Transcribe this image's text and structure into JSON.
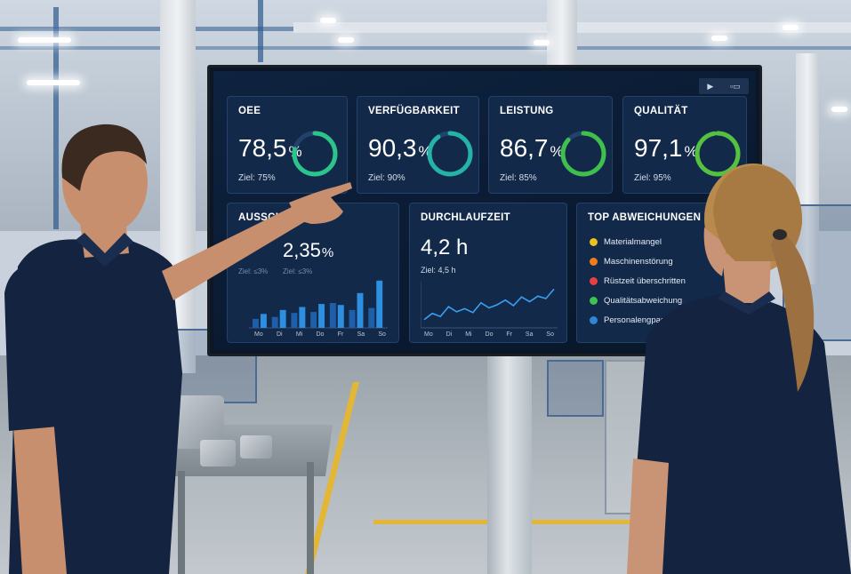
{
  "tv": {
    "toolbar": {
      "play_icon": "▶",
      "screen_icon": "▫▭"
    },
    "kpis": [
      {
        "title": "OEE",
        "value": "78,5",
        "unit": "%",
        "target": "Ziel: 75%",
        "fraction": 0.785,
        "color": "#2bc48a"
      },
      {
        "title": "VERFÜGBARKEIT",
        "value": "90,3",
        "unit": "%",
        "target": "Ziel: 90%",
        "fraction": 0.903,
        "color": "#24b3a6"
      },
      {
        "title": "LEISTUNG",
        "value": "86,7",
        "unit": "%",
        "target": "Ziel: 85%",
        "fraction": 0.867,
        "color": "#3fbf4b"
      },
      {
        "title": "QUALITÄT",
        "value": "97,1",
        "unit": "%",
        "target": "Ziel: 95%",
        "fraction": 0.971,
        "color": "#55c23f"
      }
    ],
    "scrap": {
      "title": "AUSSCHUSS",
      "value": "2,35",
      "unit": "%",
      "target_a": "Ziel: ≤3%",
      "target_b": "Ziel: ≤3%",
      "days": [
        "Mo",
        "Di",
        "Mi",
        "Do",
        "Fr",
        "Sa",
        "So"
      ],
      "bars_light": [
        0.28,
        0.36,
        0.42,
        0.48,
        0.46,
        0.7,
        0.95
      ],
      "bars_dark": [
        0.18,
        0.22,
        0.3,
        0.32,
        0.5,
        0.36,
        0.4
      ]
    },
    "throughput": {
      "title": "DURCHLAUFZEIT",
      "value": "4,2 h",
      "target": "Ziel: 4,5 h",
      "days": [
        "Mo",
        "Di",
        "Mi",
        "Do",
        "Fr",
        "Sa",
        "So"
      ],
      "line": [
        0.12,
        0.28,
        0.2,
        0.45,
        0.32,
        0.4,
        0.3,
        0.55,
        0.42,
        0.5,
        0.62,
        0.48,
        0.7,
        0.58,
        0.72,
        0.66,
        0.9
      ]
    },
    "deviations": {
      "title": "TOP ABWEICHUNGEN",
      "items": [
        {
          "label": "Materialmangel",
          "color": "#e8c21e"
        },
        {
          "label": "Maschinenstörung",
          "color": "#ef7d1a"
        },
        {
          "label": "Rüstzeit überschritten",
          "color": "#e84040"
        },
        {
          "label": "Qualitätsabweichung",
          "color": "#3fc24f"
        },
        {
          "label": "Personalengpass",
          "color": "#2d86d6"
        }
      ]
    }
  }
}
